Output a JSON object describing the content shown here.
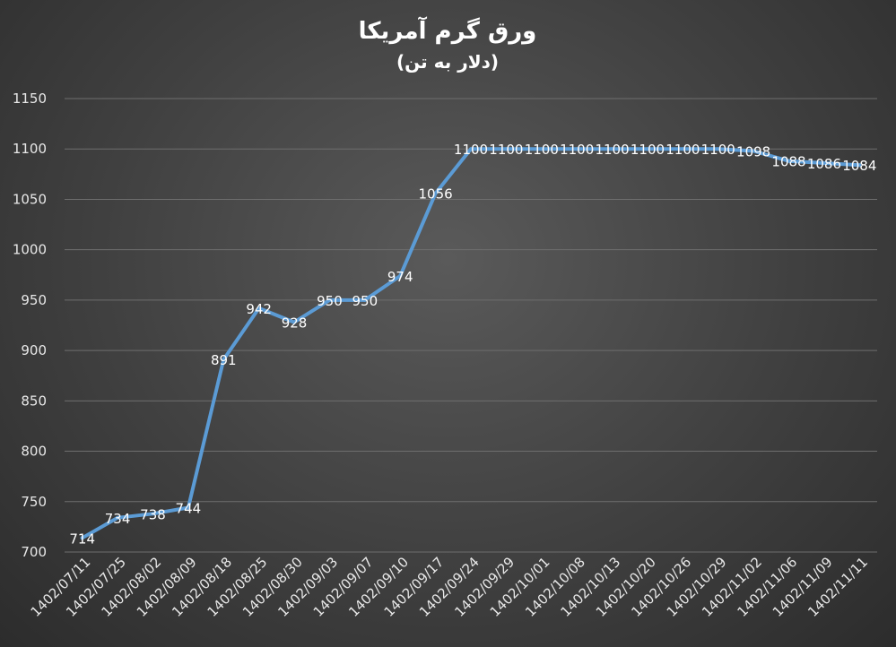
{
  "chart_data": {
    "type": "line",
    "title": "ورق گرم آمریکا",
    "subtitle": "(دلار به تن)",
    "xlabel": "",
    "ylabel": "",
    "ylim": [
      700,
      1150
    ],
    "yticks": [
      700,
      750,
      800,
      850,
      900,
      950,
      1000,
      1050,
      1100,
      1150
    ],
    "grid": true,
    "legend": "none",
    "categories": [
      "1402/07/11",
      "1402/07/25",
      "1402/08/02",
      "1402/08/09",
      "1402/08/18",
      "1402/08/25",
      "1402/08/30",
      "1402/09/03",
      "1402/09/07",
      "1402/09/10",
      "1402/09/17",
      "1402/09/24",
      "1402/09/29",
      "1402/10/01",
      "1402/10/08",
      "1402/10/13",
      "1402/10/20",
      "1402/10/26",
      "1402/10/29",
      "1402/11/02",
      "1402/11/06",
      "1402/11/09",
      "1402/11/11"
    ],
    "series": [
      {
        "color": "#5b9bd5",
        "values": [
          714,
          734,
          738,
          744,
          891,
          942,
          928,
          950,
          950,
          974,
          1056,
          1100,
          1100,
          1100,
          1100,
          1100,
          1100,
          1100,
          1100,
          1098,
          1088,
          1086,
          1084
        ],
        "labels": [
          "714",
          "734",
          "738",
          "744",
          "891",
          "942",
          "928",
          "950",
          "950",
          "974",
          "1056",
          "1100",
          "1100",
          "1100",
          "1100",
          "1100",
          "1100",
          "1100",
          "1100",
          "1098",
          "1088",
          "1086",
          "1084"
        ]
      }
    ]
  }
}
